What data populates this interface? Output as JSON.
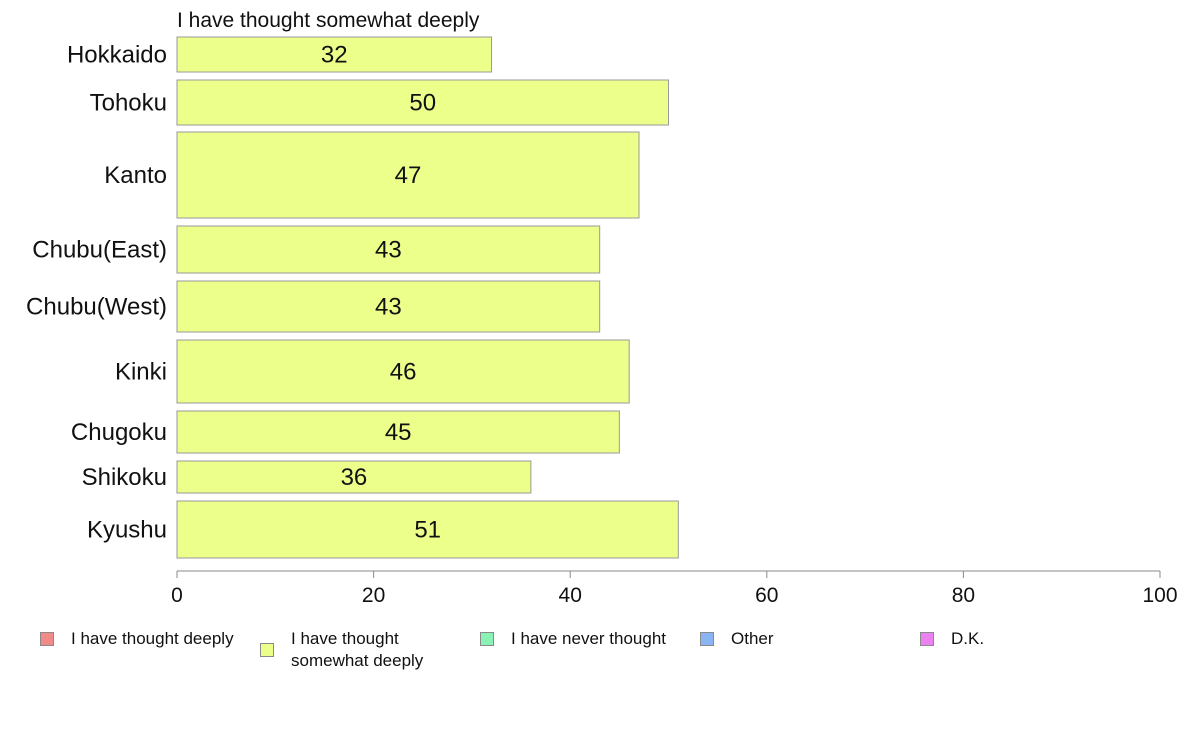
{
  "chart_data": {
    "type": "bar",
    "orientation": "horizontal",
    "title": "I have thought somewhat deeply",
    "categories": [
      "Hokkaido",
      "Tohoku",
      "Kanto",
      "Chubu(East)",
      "Chubu(West)",
      "Kinki",
      "Chugoku",
      "Shikoku",
      "Kyushu"
    ],
    "values": [
      32,
      50,
      47,
      43,
      43,
      46,
      45,
      36,
      51
    ],
    "data_labels": [
      "32",
      "50",
      "47",
      "43",
      "43",
      "46",
      "45",
      "36",
      "51"
    ],
    "bar_color": "#ecff8a",
    "xlim": [
      0,
      100
    ],
    "xticks": [
      0,
      20,
      40,
      60,
      80,
      100
    ],
    "grid": false,
    "legend_position": "bottom",
    "legend": [
      {
        "label": "I have thought deeply",
        "color": "#f28a8a"
      },
      {
        "label": "I have thought somewhat deeply",
        "color": "#ecff8a"
      },
      {
        "label": "I have never thought",
        "color": "#8af2b4"
      },
      {
        "label": "Other",
        "color": "#8ab4f2"
      },
      {
        "label": "D.K.",
        "color": "#ec82f2"
      }
    ]
  }
}
